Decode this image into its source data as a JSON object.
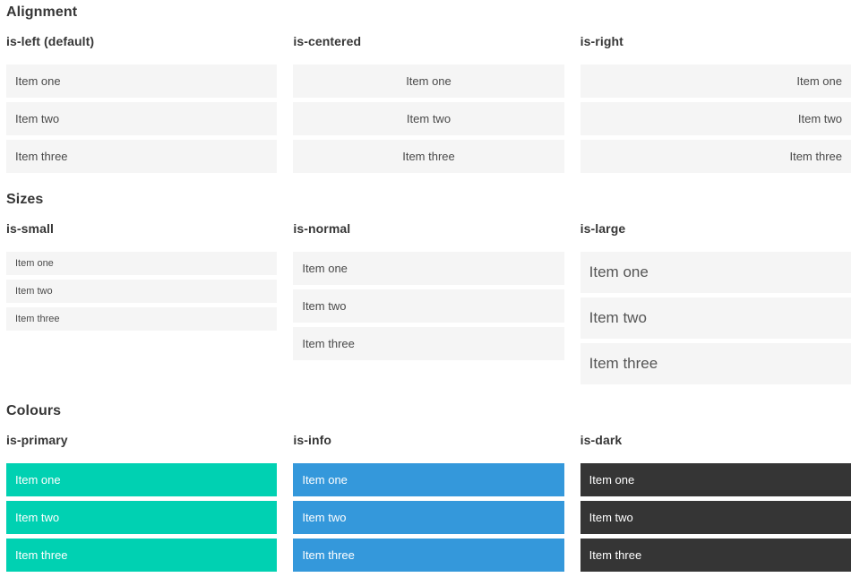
{
  "item_labels": [
    "Item one",
    "Item two",
    "Item three"
  ],
  "sections": [
    {
      "title": "Alignment",
      "variants": [
        {
          "label": "is-left (default)"
        },
        {
          "label": "is-centered"
        },
        {
          "label": "is-right"
        }
      ]
    },
    {
      "title": "Sizes",
      "variants": [
        {
          "label": "is-small"
        },
        {
          "label": "is-normal"
        },
        {
          "label": "is-large"
        }
      ]
    },
    {
      "title": "Colours",
      "variants": [
        {
          "label": "is-primary"
        },
        {
          "label": "is-info"
        },
        {
          "label": "is-dark"
        }
      ]
    }
  ],
  "colors": {
    "primary": "#00d1b2",
    "info": "#3498db",
    "dark": "#353535",
    "item_background": "#f5f5f5",
    "item_text": "#4a4a4a",
    "heading_text": "#363636",
    "colored_item_text": "#ffffff"
  }
}
